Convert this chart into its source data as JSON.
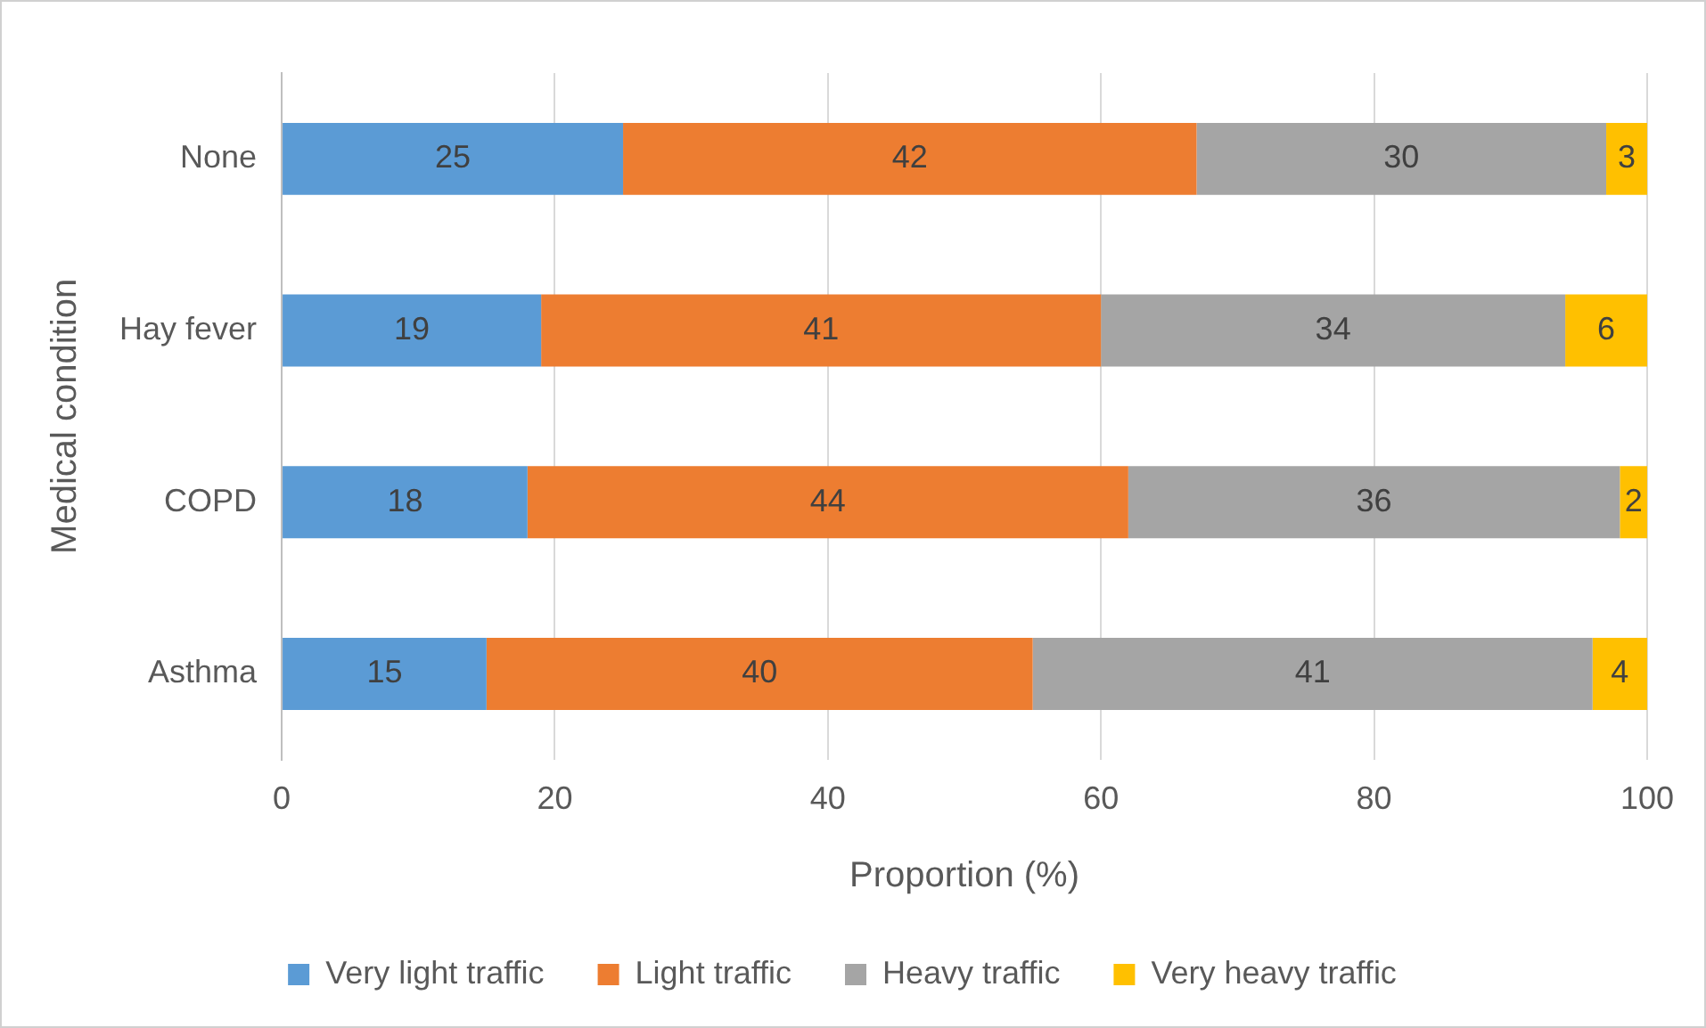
{
  "chart_data": {
    "type": "bar",
    "orientation": "horizontal",
    "stacked": true,
    "categories": [
      "None",
      "Hay fever",
      "COPD",
      "Asthma"
    ],
    "series": [
      {
        "name": "Very light traffic",
        "color": "#5b9bd5",
        "values": [
          25,
          19,
          18,
          15
        ]
      },
      {
        "name": "Light traffic",
        "color": "#ed7d31",
        "values": [
          42,
          41,
          44,
          40
        ]
      },
      {
        "name": "Heavy traffic",
        "color": "#a5a5a5",
        "values": [
          30,
          34,
          36,
          41
        ]
      },
      {
        "name": "Very heavy traffic",
        "color": "#ffc000",
        "values": [
          3,
          6,
          2,
          4
        ]
      }
    ],
    "xlim": [
      0,
      100
    ],
    "xticks": [
      0,
      20,
      40,
      60,
      80,
      100
    ],
    "xlabel": "Proportion (%)",
    "ylabel": "Medical condition",
    "grid": "x",
    "legend": "bottom",
    "data_labels": true
  }
}
